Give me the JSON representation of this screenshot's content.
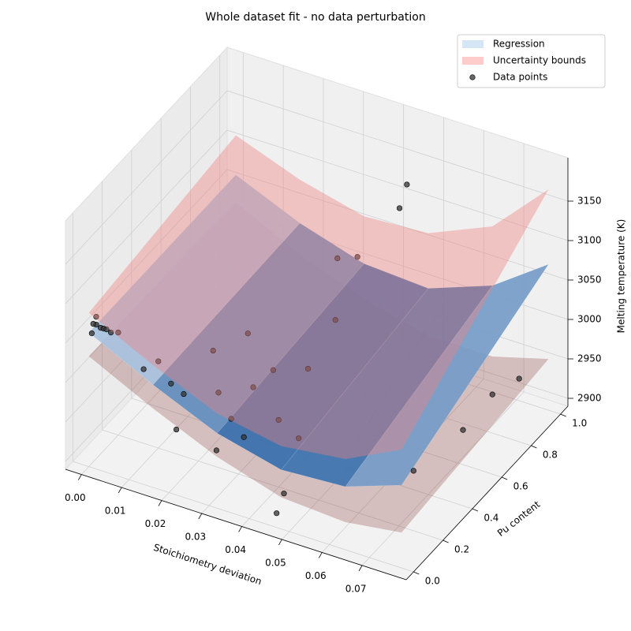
{
  "chart_data": {
    "type": "surface3d",
    "title": "Whole dataset fit - no data perturbation",
    "xlabel": "Stoichiometry deviation",
    "ylabel": "Pu content",
    "zlabel": "Melting temperature (K)",
    "xlim": [
      -0.004,
      0.081
    ],
    "ylim": [
      -0.05,
      1.05
    ],
    "zlim": [
      2890,
      3205
    ],
    "xticks": [
      {
        "value": 0,
        "label": "0.00"
      },
      {
        "value": 0.01,
        "label": "0.01"
      },
      {
        "value": 0.02,
        "label": "0.02"
      },
      {
        "value": 0.03,
        "label": "0.03"
      },
      {
        "value": 0.04,
        "label": "0.04"
      },
      {
        "value": 0.05,
        "label": "0.05"
      },
      {
        "value": 0.06,
        "label": "0.06"
      },
      {
        "value": 0.07,
        "label": "0.07"
      }
    ],
    "yticks": [
      {
        "value": 0,
        "label": "0.0"
      },
      0.2,
      0.4,
      0.6,
      0.8,
      {
        "value": 1,
        "label": "1.0"
      }
    ],
    "zticks": [
      2900,
      2950,
      3000,
      3050,
      3100,
      3150
    ],
    "grid": true,
    "legend": "upper right",
    "grid_x": [
      0,
      0.016,
      0.032,
      0.048,
      0.064,
      0.078
    ],
    "grid_y": [
      0,
      1
    ],
    "colormap": [
      "#0b4f9a",
      "#eef5fc"
    ],
    "series": [
      {
        "name": "Regression",
        "kind": "surface",
        "color": "#d6e6f6",
        "z": [
          [
            3060,
            3020,
            2985,
            2965,
            2970,
            2995
          ],
          [
            3060,
            3025,
            3000,
            2995,
            3025,
            3075
          ]
        ]
      },
      {
        "name": "Uncertainty bounds",
        "kind": "bounds",
        "color": "#ffcccc",
        "lower": [
          [
            3030,
            2990,
            2955,
            2930,
            2925,
            2935
          ],
          [
            3025,
            2985,
            2955,
            2935,
            2935,
            2955
          ]
        ],
        "upper": [
          [
            3085,
            3045,
            3010,
            2995,
            3005,
            3040
          ],
          [
            3110,
            3080,
            3060,
            3065,
            3100,
            3170
          ]
        ]
      },
      {
        "name": "Data points",
        "kind": "scatter",
        "color": "#333333",
        "x": [
          0,
          0,
          0,
          0,
          0,
          0,
          0,
          0,
          0,
          0.01,
          0.01,
          0.015,
          0.02,
          0.02,
          0.025,
          0.025,
          0.03,
          0.03,
          0.02,
          0.03,
          0.035,
          0.035,
          0.04,
          0.04,
          0.045,
          0.045,
          0.045,
          0.04,
          0.045,
          0.05,
          0.05,
          0.045,
          0.07,
          0.075,
          0.078,
          0.075
        ],
        "y": [
          0.05,
          0.05,
          0.08,
          0.1,
          0.12,
          0.02,
          0.15,
          0.2,
          0.03,
          0.1,
          0.2,
          0.15,
          0.1,
          0.3,
          0.2,
          0.4,
          0.15,
          0.3,
          0.05,
          0.05,
          0.1,
          0.3,
          0.2,
          0.4,
          0.2,
          0.1,
          0.05,
          0.6,
          0.6,
          0.75,
          0.8,
          0.45,
          0.3,
          0.5,
          0.8,
          0.7
        ],
        "z": [
          3060,
          3070,
          3050,
          3045,
          3040,
          3055,
          3030,
          3020,
          3065,
          3010,
          3000,
          2990,
          2995,
          3010,
          2985,
          3020,
          2970,
          2980,
          2960,
          2950,
          2965,
          3010,
          2975,
          3000,
          2960,
          2910,
          2895,
          3100,
          3110,
          3150,
          3170,
          3060,
          2940,
          2960,
          2970,
          2965
        ]
      }
    ]
  }
}
